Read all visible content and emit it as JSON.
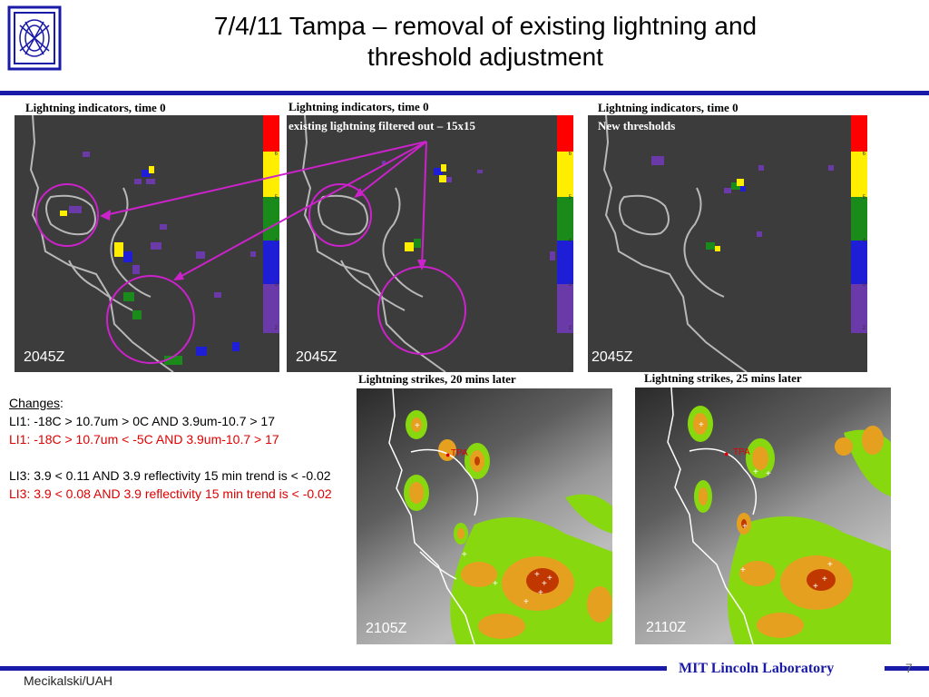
{
  "title": "7/4/11 Tampa – removal of existing lightning and\nthreshold adjustment",
  "panels_top": [
    {
      "caption": "Lightning indicators, time 0",
      "subcaption": "",
      "time": "2045Z"
    },
    {
      "caption": "Lightning indicators, time 0",
      "subcaption": "existing lightning filtered out – 15x15",
      "time": "2045Z"
    },
    {
      "caption": "Lightning indicators, time 0",
      "subcaption": "New thresholds",
      "time": "2045Z"
    }
  ],
  "panels_bottom": [
    {
      "caption": "Lightning strikes, 20 mins later",
      "time": "2105Z",
      "marker": "TPA"
    },
    {
      "caption": "Lightning strikes, 25 mins later",
      "time": "2110Z",
      "marker": "TPA"
    }
  ],
  "colorbar_ticks": [
    "6",
    "5",
    "4",
    "3",
    "2",
    "1"
  ],
  "colors": {
    "accent": "#1a1aa8",
    "highlight": "#cc22cc",
    "red_text": "#e00000"
  },
  "notes": {
    "heading": "Changes",
    "heading_suffix": ":",
    "line1": "LI1:  -18C > 10.7um > 0C AND 3.9um-10.7 > 17",
    "line2": "LI1:  -18C > 10.7um < -5C AND 3.9um-10.7 > 17",
    "line3": "LI3: 3.9 < 0.11 AND 3.9 reflectivity 15 min trend is < -0.02",
    "line4": "LI3: 3.9 < 0.08 AND 3.9 reflectivity 15 min trend is < -0.02"
  },
  "footer": {
    "left": "Mecikalski/UAH",
    "right": "MIT Lincoln Laboratory",
    "page": "7"
  },
  "logo_icon": "mit-ll-logo-icon"
}
